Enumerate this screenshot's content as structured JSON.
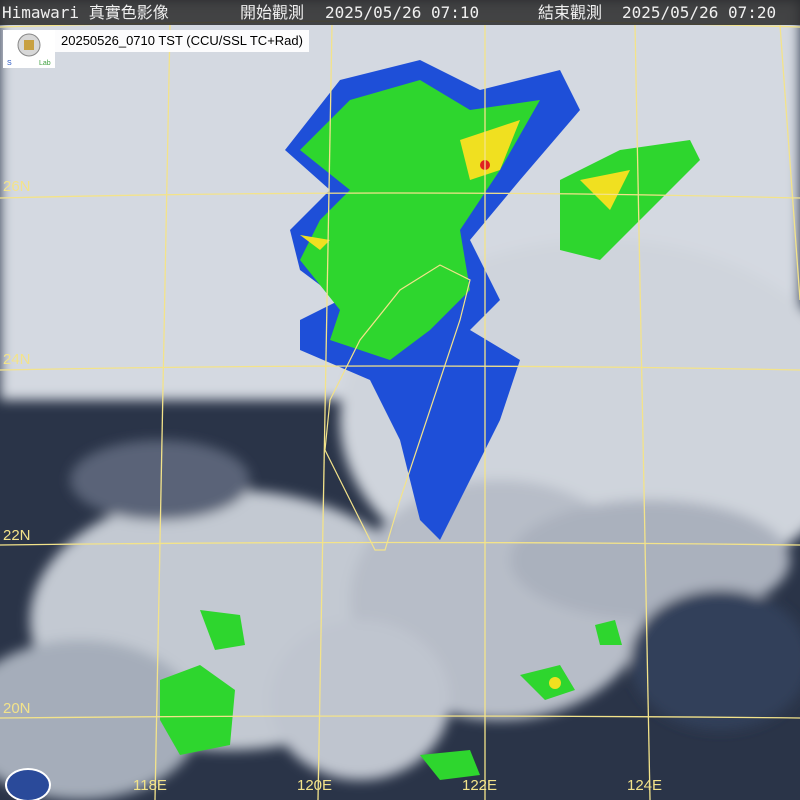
{
  "header": {
    "title": "Himawari 真實色影像",
    "start_label": "開始觀測",
    "start_time": "2025/05/26 07:10",
    "end_label": "結束觀測",
    "end_time": "2025/05/26 07:20"
  },
  "product_label": "20250526_0710 TST (CCU/SSL TC+Rad)",
  "logo_text": "Severe Storms Lab",
  "lat_labels": [
    "26N",
    "24N",
    "22N",
    "20N"
  ],
  "lon_labels": [
    "118E",
    "120E",
    "122E",
    "124E"
  ],
  "colors": {
    "grid": "#f3e38a",
    "coast": "#f3e38a",
    "radar_low": "#1e4fd8",
    "radar_mid": "#2ed62e",
    "radar_high": "#f0e020",
    "radar_peak": "#e02020"
  }
}
